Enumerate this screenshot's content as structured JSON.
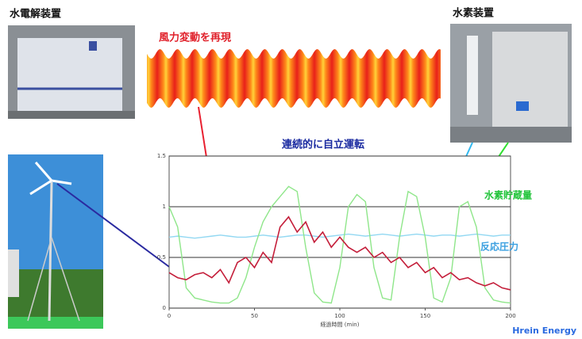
{
  "labels": {
    "electrolyzer": "水電解装置",
    "hydrogen_unit": "水素装置",
    "wind_note": "風力変動を再現",
    "operation_note": "連続的に自立運転",
    "credit": "Hrein Energy"
  },
  "chart_data": {
    "type": "line",
    "x_label": "経過時間 (min)",
    "x": [
      0,
      5,
      10,
      15,
      20,
      25,
      30,
      35,
      40,
      45,
      50,
      55,
      60,
      65,
      70,
      75,
      80,
      85,
      90,
      95,
      100,
      105,
      110,
      115,
      120,
      125,
      130,
      135,
      140,
      145,
      150,
      155,
      160,
      165,
      170,
      175,
      180,
      185,
      190,
      195,
      200
    ],
    "series": [
      {
        "color": "#c41e3a",
        "values": [
          0.35,
          0.3,
          0.28,
          0.33,
          0.35,
          0.3,
          0.38,
          0.25,
          0.45,
          0.5,
          0.4,
          0.55,
          0.45,
          0.8,
          0.9,
          0.75,
          0.85,
          0.65,
          0.75,
          0.6,
          0.7,
          0.6,
          0.55,
          0.6,
          0.5,
          0.55,
          0.45,
          0.5,
          0.4,
          0.45,
          0.35,
          0.4,
          0.3,
          0.35,
          0.28,
          0.3,
          0.25,
          0.22,
          0.25,
          0.2,
          0.18
        ]
      },
      {
        "name": "水素貯蔵量",
        "color": "#8fe68a",
        "label_color": "#22c43a",
        "values": [
          1.0,
          0.8,
          0.2,
          0.1,
          0.08,
          0.06,
          0.05,
          0.05,
          0.1,
          0.3,
          0.6,
          0.85,
          1.0,
          1.1,
          1.2,
          1.15,
          0.6,
          0.15,
          0.06,
          0.05,
          0.4,
          1.0,
          1.12,
          1.05,
          0.4,
          0.1,
          0.08,
          0.7,
          1.15,
          1.1,
          0.7,
          0.1,
          0.06,
          0.3,
          1.0,
          1.05,
          0.8,
          0.2,
          0.08,
          0.06,
          0.05
        ]
      },
      {
        "name": "反応圧力",
        "color": "#92d8f2",
        "label_color": "#3a9fe0",
        "values": [
          0.7,
          0.71,
          0.7,
          0.69,
          0.7,
          0.71,
          0.72,
          0.71,
          0.7,
          0.7,
          0.71,
          0.72,
          0.71,
          0.7,
          0.71,
          0.72,
          0.72,
          0.71,
          0.7,
          0.71,
          0.72,
          0.73,
          0.72,
          0.71,
          0.72,
          0.73,
          0.72,
          0.71,
          0.72,
          0.73,
          0.72,
          0.71,
          0.72,
          0.72,
          0.71,
          0.72,
          0.73,
          0.72,
          0.71,
          0.72,
          0.72
        ]
      }
    ],
    "xlim": [
      0,
      200
    ],
    "xticks": [
      0,
      50,
      100,
      150,
      200
    ],
    "ylim": [
      0,
      1.5
    ],
    "yticks": [
      0,
      0.5,
      1,
      1.5
    ],
    "grid": true
  }
}
